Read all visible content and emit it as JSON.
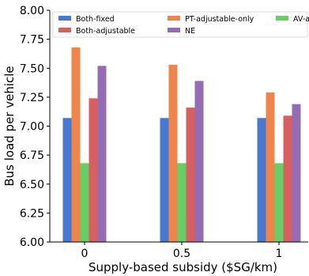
{
  "chart_data": {
    "type": "bar",
    "xlabel": "Supply-based subsidy ($SG/km)",
    "ylabel": "Bus load per vehicle",
    "categories": [
      "0",
      "0.5",
      "1"
    ],
    "ylim": [
      6.0,
      8.0
    ],
    "yticks": [
      "6.00",
      "6.25",
      "6.50",
      "6.75",
      "7.00",
      "7.25",
      "7.50",
      "7.75",
      "8.00"
    ],
    "grid": false,
    "legend_position": "top",
    "series": [
      {
        "name": "Both-fixed",
        "color": "#4878d0",
        "values": [
          7.07,
          7.07,
          7.07
        ]
      },
      {
        "name": "PT-adjustable-only",
        "color": "#ee854a",
        "values": [
          7.68,
          7.53,
          7.29
        ]
      },
      {
        "name": "AV-adjustable-only",
        "color": "#6acc64",
        "values": [
          6.68,
          6.68,
          6.68
        ]
      },
      {
        "name": "Both-adjustable",
        "color": "#d65f5f",
        "values": [
          7.24,
          7.16,
          7.09
        ]
      },
      {
        "name": "NE",
        "color": "#956cb4",
        "values": [
          7.52,
          7.39,
          7.19
        ]
      }
    ]
  }
}
